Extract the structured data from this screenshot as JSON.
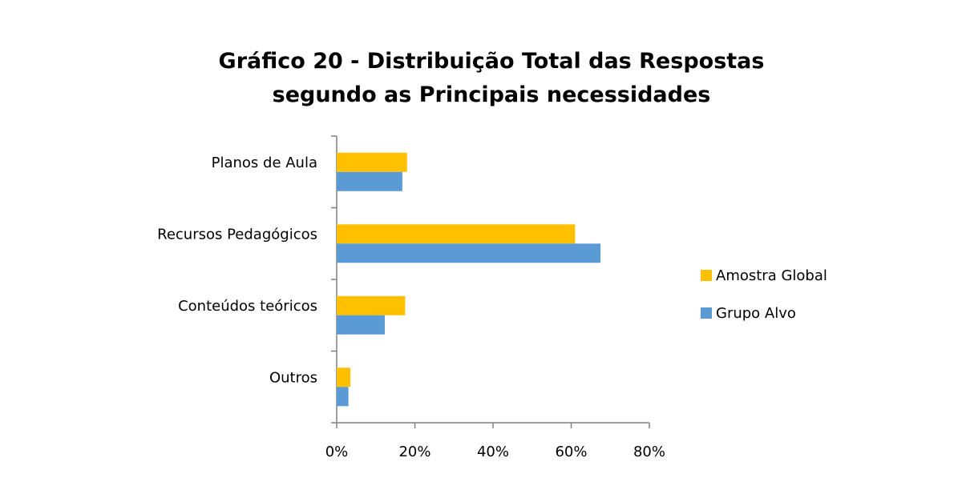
{
  "chart_data": {
    "type": "bar",
    "orientation": "horizontal",
    "title": [
      "Gráfico 20 - Distribuição Total das Respostas",
      "segundo as Principais necessidades"
    ],
    "categories": [
      "Planos de Aula",
      "Recursos Pedagógicos",
      "Conteúdos teóricos",
      "Outros"
    ],
    "series": [
      {
        "name": "Amostra Global",
        "color": "#FFC000",
        "values": [
          18,
          61,
          17.5,
          3.5
        ]
      },
      {
        "name": "Grupo Alvo",
        "color": "#5B9BD5",
        "values": [
          16.8,
          67.5,
          12.3,
          3
        ]
      }
    ],
    "xlim": [
      0,
      80
    ],
    "xticks": [
      "0%",
      "20%",
      "40%",
      "60%",
      "80%"
    ],
    "xtick_values": [
      0,
      20,
      40,
      60,
      80
    ],
    "legend": "right",
    "grid": false
  }
}
